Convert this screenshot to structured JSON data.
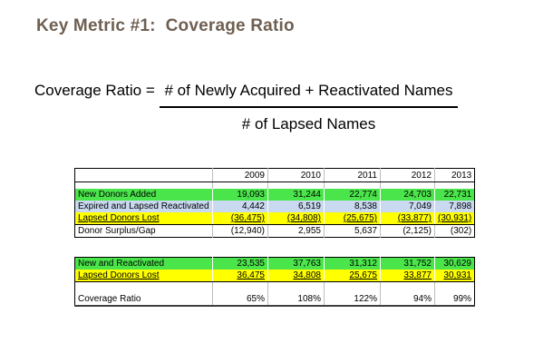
{
  "title": "Key Metric #1:  Coverage Ratio",
  "formula": {
    "lhs": "Coverage Ratio = ",
    "numerator": "# of Newly Acquired + Reactivated Names",
    "denominator": "# of Lapsed Names"
  },
  "colors": {
    "title": "#6e5f51",
    "green": "#4ae54a",
    "blue": "#c9d9f0",
    "yellow": "#ffff00"
  },
  "table1": {
    "columns": [
      "",
      "2009",
      "2010",
      "2011",
      "2012",
      "2013"
    ],
    "rows": [
      {
        "label": "",
        "values": [
          "",
          "",
          "",
          "",
          ""
        ],
        "style": "spacer"
      },
      {
        "label": "New Donors Added",
        "values": [
          "19,093",
          "31,244",
          "22,774",
          "24,703",
          "22,731"
        ],
        "style": "green"
      },
      {
        "label": "Expired and Lapsed Reactivated",
        "values": [
          "4,442",
          "6,519",
          "8,538",
          "7,049",
          "7,898"
        ],
        "style": "blue"
      },
      {
        "label": "Lapsed Donors Lost",
        "values": [
          "(36,475)",
          "(34,808)",
          "(25,675)",
          "(33,877)",
          "(30,931)"
        ],
        "style": "yellow"
      },
      {
        "label": "Donor Surplus/Gap",
        "values": [
          "(12,940)",
          "2,955",
          "5,637",
          "(2,125)",
          "(302)"
        ],
        "style": "plain"
      }
    ]
  },
  "table2": {
    "rows": [
      {
        "label": "New and Reactivated",
        "values": [
          "23,535",
          "37,763",
          "31,312",
          "31,752",
          "30,629"
        ],
        "style": "green"
      },
      {
        "label": "Lapsed Donors Lost",
        "values": [
          "36,475",
          "34,808",
          "25,675",
          "33,877",
          "30,931"
        ],
        "style": "yellow"
      },
      {
        "label": "",
        "values": [
          "",
          "",
          "",
          "",
          ""
        ],
        "style": "spacer"
      },
      {
        "label": "Coverage Ratio",
        "values": [
          "65%",
          "108%",
          "122%",
          "94%",
          "99%"
        ],
        "style": "plain"
      }
    ]
  }
}
